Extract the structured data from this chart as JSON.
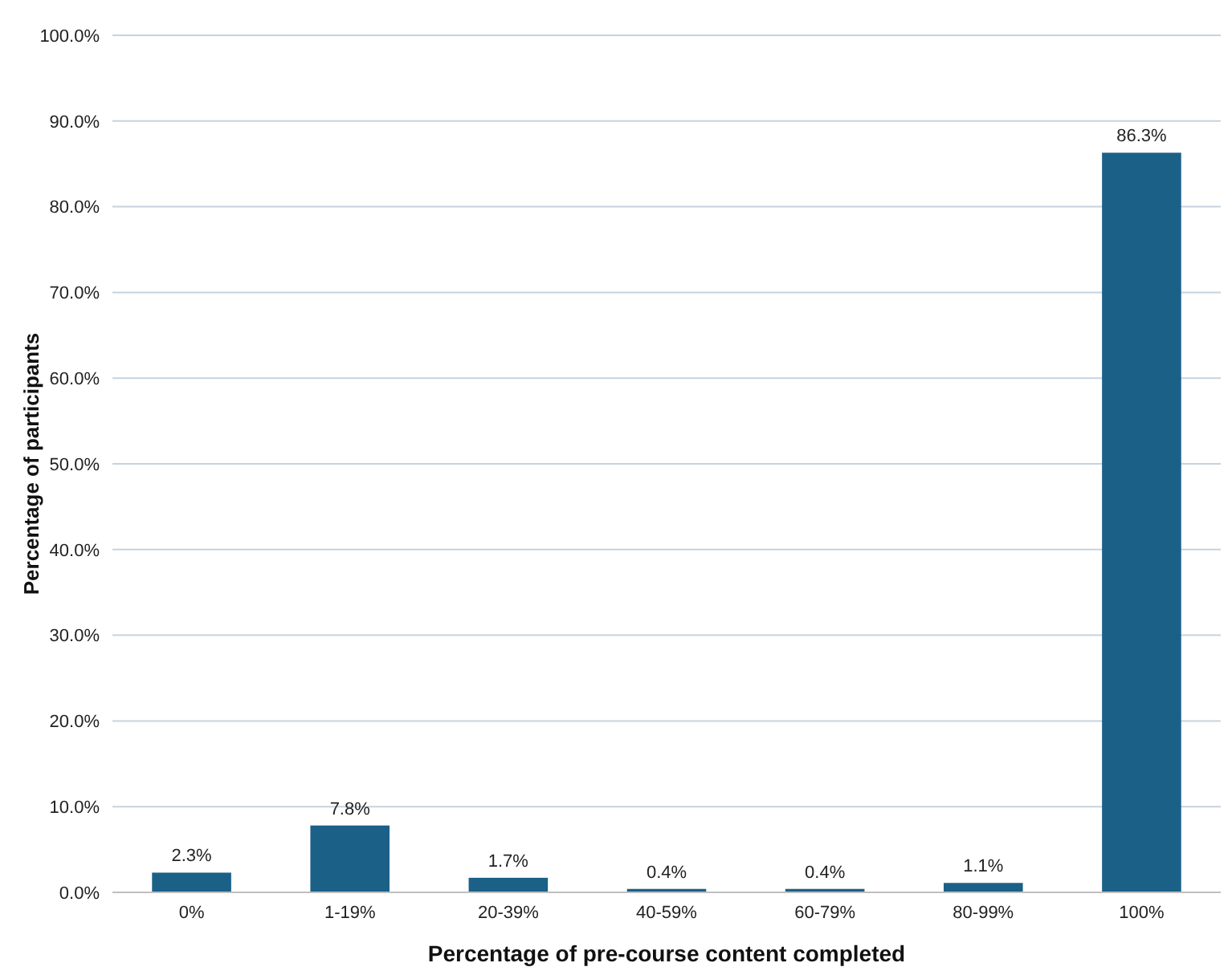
{
  "chart_data": {
    "type": "bar",
    "xlabel": "Percentage of pre-course content completed",
    "ylabel": "Percentage of participants",
    "categories": [
      "0%",
      "1-19%",
      "20-39%",
      "40-59%",
      "60-79%",
      "80-99%",
      "100%"
    ],
    "values": [
      2.3,
      7.8,
      1.7,
      0.4,
      0.4,
      1.1,
      86.3
    ],
    "value_labels": [
      "2.3%",
      "7.8%",
      "1.7%",
      "0.4%",
      "0.4%",
      "1.1%",
      "86.3%"
    ],
    "color": "#1b6087",
    "ylim": [
      0,
      100
    ],
    "yticks": [
      {
        "value": 0,
        "label": "0.0%"
      },
      {
        "value": 10,
        "label": "10.0%"
      },
      {
        "value": 20,
        "label": "20.0%"
      },
      {
        "value": 30,
        "label": "30.0%"
      },
      {
        "value": 40,
        "label": "40.0%"
      },
      {
        "value": 50,
        "label": "50.0%"
      },
      {
        "value": 60,
        "label": "60.0%"
      },
      {
        "value": 70,
        "label": "70.0%"
      },
      {
        "value": 80,
        "label": "80.0%"
      },
      {
        "value": 90,
        "label": "90.0%"
      },
      {
        "value": 100,
        "label": "100.0%"
      }
    ],
    "grid": "y"
  }
}
